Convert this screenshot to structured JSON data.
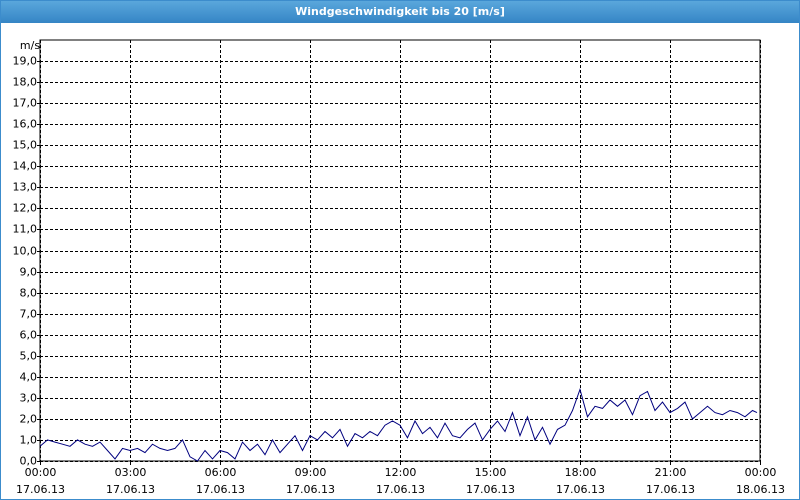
{
  "chart_data": {
    "type": "line",
    "title": "Windgeschwindigkeit bis 20 [m/s]",
    "y_label": "m/s",
    "x": [
      0,
      0.25,
      0.5,
      0.75,
      1,
      1.25,
      1.5,
      1.75,
      2,
      2.25,
      2.5,
      2.75,
      3,
      3.25,
      3.5,
      3.75,
      4,
      4.25,
      4.5,
      4.75,
      5,
      5.25,
      5.5,
      5.75,
      6,
      6.25,
      6.5,
      6.75,
      7,
      7.25,
      7.5,
      7.75,
      8,
      8.25,
      8.5,
      8.75,
      9,
      9.25,
      9.5,
      9.75,
      10,
      10.25,
      10.5,
      10.75,
      11,
      11.25,
      11.5,
      11.75,
      12,
      12.25,
      12.5,
      12.75,
      13,
      13.25,
      13.5,
      13.75,
      14,
      14.25,
      14.5,
      14.75,
      15,
      15.25,
      15.5,
      15.75,
      16,
      16.25,
      16.5,
      16.75,
      17,
      17.25,
      17.5,
      17.75,
      18,
      18.25,
      18.5,
      18.75,
      19,
      19.25,
      19.5,
      19.75,
      20,
      20.25,
      20.5,
      20.75,
      21,
      21.25,
      21.5,
      21.75,
      22,
      22.25,
      22.5,
      22.75,
      23,
      23.25,
      23.5,
      23.75,
      23.9
    ],
    "series": [
      {
        "name": "Windgeschwindigkeit",
        "color": "#00007f",
        "values": [
          0.7,
          1.0,
          0.9,
          0.8,
          0.7,
          1.0,
          0.8,
          0.7,
          0.9,
          0.5,
          0.1,
          0.6,
          0.5,
          0.6,
          0.4,
          0.8,
          0.6,
          0.5,
          0.6,
          1.0,
          0.2,
          0.0,
          0.5,
          0.1,
          0.5,
          0.4,
          0.1,
          0.9,
          0.5,
          0.8,
          0.3,
          1.0,
          0.4,
          0.8,
          1.2,
          0.5,
          1.2,
          1.0,
          1.4,
          1.1,
          1.5,
          0.7,
          1.3,
          1.1,
          1.4,
          1.2,
          1.7,
          1.9,
          1.7,
          1.1,
          1.9,
          1.3,
          1.6,
          1.1,
          1.8,
          1.2,
          1.1,
          1.5,
          1.8,
          1.0,
          1.5,
          1.9,
          1.4,
          2.3,
          1.2,
          2.1,
          1.0,
          1.6,
          0.8,
          1.5,
          1.7,
          2.4,
          3.4,
          2.1,
          2.6,
          2.5,
          2.9,
          2.6,
          2.9,
          2.2,
          3.1,
          3.3,
          2.4,
          2.8,
          2.3,
          2.5,
          2.8,
          2.0,
          2.3,
          2.6,
          2.3,
          2.2,
          2.4,
          2.3,
          2.1,
          2.4,
          2.3
        ]
      }
    ],
    "xlim": [
      0,
      24
    ],
    "xticks": [
      {
        "value": 0,
        "label": "00:00\n17.06.13"
      },
      {
        "value": 3,
        "label": "03:00\n17.06.13"
      },
      {
        "value": 6,
        "label": "06:00\n17.06.13"
      },
      {
        "value": 9,
        "label": "09:00\n17.06.13"
      },
      {
        "value": 12,
        "label": "12:00\n17.06.13"
      },
      {
        "value": 15,
        "label": "15:00\n17.06.13"
      },
      {
        "value": 18,
        "label": "18:00\n17.06.13"
      },
      {
        "value": 21,
        "label": "21:00\n17.06.13"
      },
      {
        "value": 24,
        "label": "00:00\n18.06.13"
      }
    ],
    "ylim": [
      0,
      20
    ],
    "yticks": [
      {
        "value": 0,
        "label": "0,0"
      },
      {
        "value": 1,
        "label": "1,0"
      },
      {
        "value": 2,
        "label": "2,0"
      },
      {
        "value": 3,
        "label": "3,0"
      },
      {
        "value": 4,
        "label": "4,0"
      },
      {
        "value": 5,
        "label": "5,0"
      },
      {
        "value": 6,
        "label": "6,0"
      },
      {
        "value": 7,
        "label": "7,0"
      },
      {
        "value": 8,
        "label": "8,0"
      },
      {
        "value": 9,
        "label": "9,0"
      },
      {
        "value": 10,
        "label": "10,0"
      },
      {
        "value": 11,
        "label": "11,0"
      },
      {
        "value": 12,
        "label": "12,0"
      },
      {
        "value": 13,
        "label": "13,0"
      },
      {
        "value": 14,
        "label": "14,0"
      },
      {
        "value": 15,
        "label": "15,0"
      },
      {
        "value": 16,
        "label": "16,0"
      },
      {
        "value": 17,
        "label": "17,0"
      },
      {
        "value": 18,
        "label": "18,0"
      },
      {
        "value": 19,
        "label": "19,0"
      }
    ],
    "grid": true
  }
}
